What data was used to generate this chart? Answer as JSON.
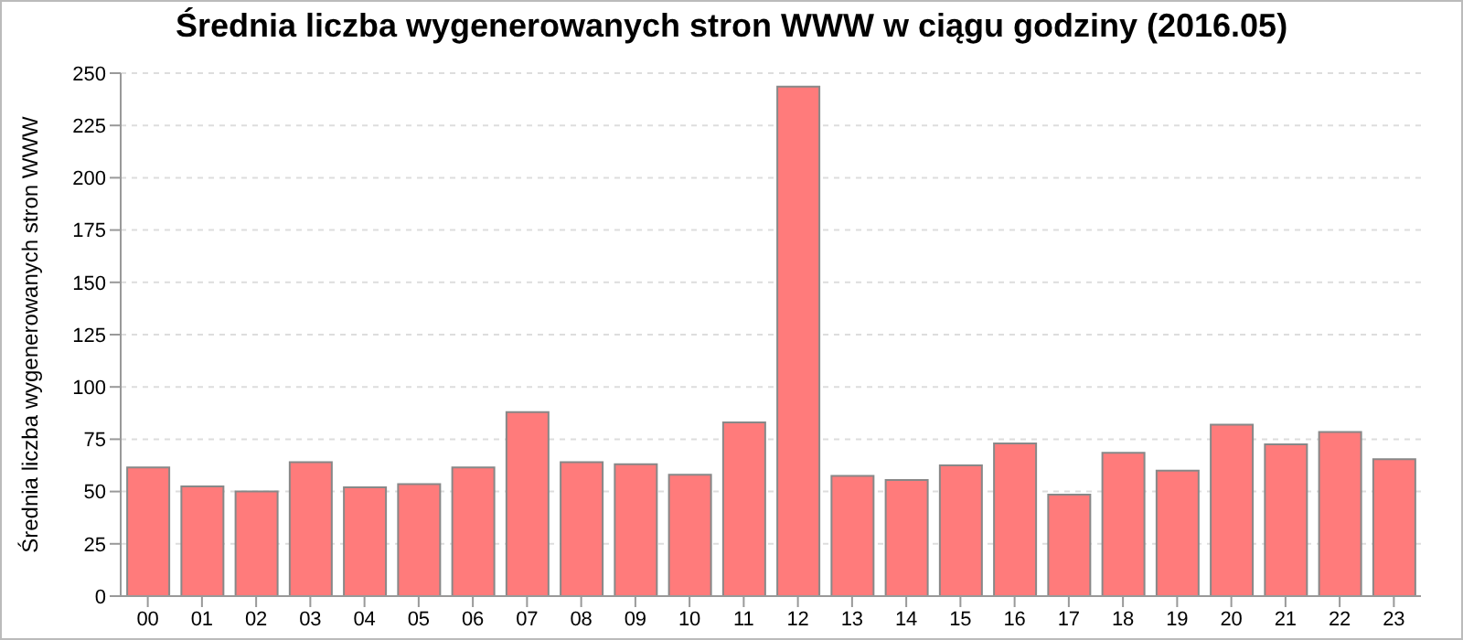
{
  "chart_data": {
    "type": "bar",
    "title": "Średnia liczba wygenerowanych stron WWW w ciągu godziny (2016.05)",
    "ylabel": "Średnia liczba wygenerowanych stron WWW",
    "categories": [
      "00",
      "01",
      "02",
      "03",
      "04",
      "05",
      "06",
      "07",
      "08",
      "09",
      "10",
      "11",
      "12",
      "13",
      "14",
      "15",
      "16",
      "17",
      "18",
      "19",
      "20",
      "21",
      "22",
      "23"
    ],
    "values": [
      61.5,
      52.5,
      50,
      64,
      52,
      53.5,
      61.5,
      88,
      64,
      63,
      58,
      83,
      243.5,
      57.5,
      55.5,
      62.5,
      73,
      48.5,
      68.5,
      60,
      82,
      72.5,
      78.5,
      65.5
    ],
    "color": "#ff7b7b",
    "ylim": [
      0,
      250
    ],
    "yticks": [
      0,
      25,
      50,
      75,
      100,
      125,
      150,
      175,
      200,
      225,
      250
    ],
    "grid": "y"
  }
}
